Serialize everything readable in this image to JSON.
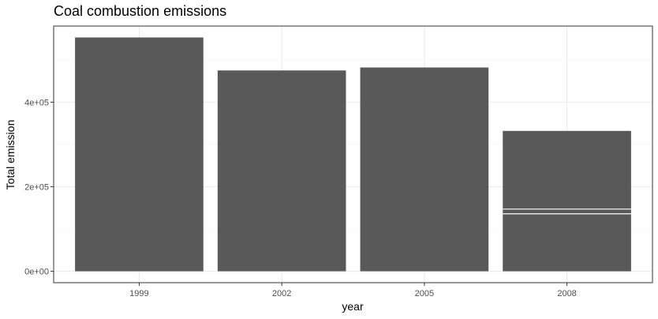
{
  "chart_data": {
    "type": "bar",
    "title": "Coal combustion emissions",
    "xlabel": "year",
    "ylabel": "Total emission",
    "categories": [
      "1999",
      "2002",
      "2005",
      "2008"
    ],
    "values": [
      553000,
      475000,
      482000,
      332000
    ],
    "segment_breaks": [
      {
        "category": "2008",
        "at": [
          136000,
          147000
        ]
      }
    ],
    "yticks": [
      0,
      200000,
      400000
    ],
    "ytick_labels": [
      "0e+00",
      "2e+05",
      "4e+05"
    ],
    "ylim": [
      -27000,
      580000
    ],
    "grid": true,
    "legend": "none",
    "colors": {
      "bar": "#595959",
      "grid_major": "#ebebeb",
      "grid_minor": "#f5f5f5",
      "panel_border": "#333333",
      "tick": "#333333",
      "background": "#ffffff"
    }
  }
}
